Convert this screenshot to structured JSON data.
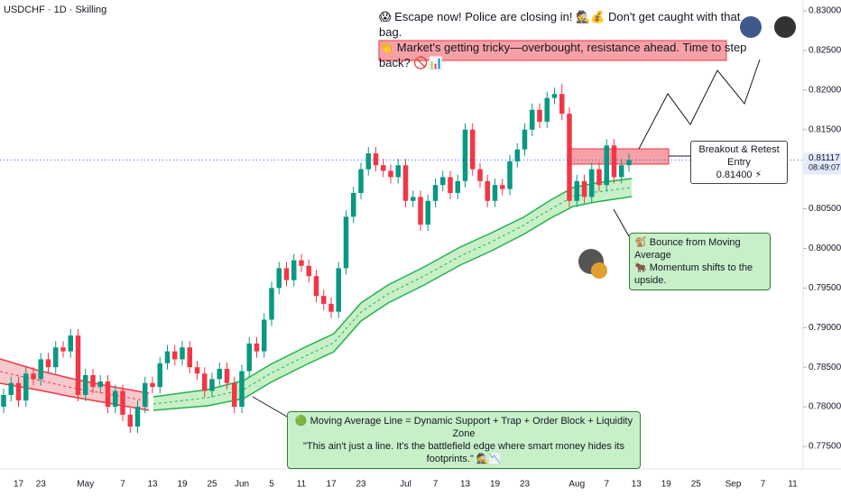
{
  "chart_data": {
    "type": "candlestick",
    "title": "USDCHF · 1D · Skilling",
    "categories": [
      null,
      null,
      "17",
      null,
      null,
      "23",
      null,
      null,
      null,
      null,
      null,
      "May",
      null,
      null,
      null,
      null,
      "7",
      null,
      null,
      null,
      "13",
      null,
      null,
      null,
      "19",
      null,
      null,
      null,
      "25",
      null,
      null,
      null,
      "Jun",
      null,
      null,
      null,
      "5",
      null,
      null,
      null,
      "11",
      null,
      null,
      null,
      "17",
      null,
      null,
      null,
      "23",
      null,
      null,
      null,
      null,
      null,
      "Jul",
      null,
      null,
      null,
      "7",
      null,
      null,
      null,
      "13",
      null,
      null,
      null,
      "19",
      null,
      null,
      null,
      "23",
      null,
      null,
      null,
      null,
      null,
      null,
      "Aug",
      null,
      null,
      null,
      "7",
      null,
      null,
      null,
      "13",
      null,
      null,
      null,
      "19",
      null,
      null,
      null,
      "25",
      null,
      null,
      null,
      null,
      "Sep",
      null,
      null,
      null,
      "7",
      null,
      null,
      null,
      "11",
      null,
      null,
      null
    ],
    "open": [
      0.78,
      0.7815,
      0.783,
      0.7808,
      0.7842,
      0.7835,
      0.786,
      0.785,
      0.7875,
      0.787,
      0.789,
      0.7815,
      0.784,
      0.7825,
      0.7832,
      0.78,
      0.782,
      0.779,
      0.7775,
      0.78,
      0.783,
      0.7825,
      0.7855,
      0.787,
      0.786,
      0.7875,
      0.785,
      0.7842,
      0.782,
      0.7835,
      0.7848,
      0.783,
      0.78,
      0.7845,
      0.788,
      0.787,
      0.791,
      0.795,
      0.7975,
      0.796,
      0.7985,
      0.7978,
      0.7965,
      0.794,
      0.793,
      0.792,
      0.7975,
      0.804,
      0.807,
      0.81,
      0.812,
      0.8105,
      0.8098,
      0.809,
      0.8105,
      0.806,
      0.8065,
      0.803,
      0.806,
      0.808,
      0.809,
      0.807,
      0.8085,
      0.815,
      0.81,
      0.8085,
      0.806,
      0.808,
      0.8075,
      0.811,
      0.8125,
      0.815,
      0.8175,
      0.816,
      0.819,
      0.8195,
      0.817,
      0.806,
      0.8085,
      0.8065,
      0.81,
      0.808,
      0.813,
      0.809,
      0.8105,
      null,
      null,
      null,
      null,
      null,
      null,
      null,
      null,
      null,
      null,
      null,
      null,
      null,
      null,
      null,
      null,
      null,
      null,
      null,
      null,
      null,
      null,
      null,
      null,
      null
    ],
    "high": [
      0.7823,
      0.7838,
      0.7838,
      0.785,
      0.785,
      0.7868,
      0.7868,
      0.7883,
      0.7883,
      0.7898,
      0.7898,
      0.7848,
      0.7848,
      0.784,
      0.784,
      0.7828,
      0.7828,
      0.7798,
      0.7808,
      0.7838,
      0.7838,
      0.7863,
      0.7878,
      0.7878,
      0.7883,
      0.7883,
      0.7858,
      0.785,
      0.7843,
      0.7856,
      0.7856,
      0.7838,
      0.7853,
      0.7888,
      0.7888,
      0.7918,
      0.7958,
      0.7983,
      0.7983,
      0.7993,
      0.7993,
      0.7986,
      0.7973,
      0.7948,
      0.7938,
      0.7983,
      0.8048,
      0.8078,
      0.8108,
      0.8128,
      0.8128,
      0.8113,
      0.8106,
      0.8113,
      0.8113,
      0.8073,
      0.8073,
      0.8068,
      0.8088,
      0.8098,
      0.8098,
      0.8093,
      0.8158,
      0.8158,
      0.8108,
      0.8093,
      0.8088,
      0.8088,
      0.8118,
      0.8133,
      0.8158,
      0.8183,
      0.8183,
      0.8198,
      0.8203,
      0.8208,
      0.8178,
      0.8093,
      0.8093,
      0.8108,
      0.8108,
      0.8138,
      0.8138,
      0.8113,
      0.812,
      null,
      null,
      null,
      null,
      null,
      null,
      null,
      null,
      null,
      null,
      null,
      null,
      null,
      null,
      null,
      null,
      null,
      null,
      null,
      null,
      null,
      null,
      null,
      null,
      null
    ],
    "low": [
      0.7792,
      0.7807,
      0.78,
      0.78,
      0.7827,
      0.7827,
      0.7842,
      0.7842,
      0.7862,
      0.7862,
      0.7807,
      0.7807,
      0.7817,
      0.7817,
      0.7792,
      0.7792,
      0.7782,
      0.7767,
      0.7767,
      0.7792,
      0.7817,
      0.7817,
      0.7847,
      0.7852,
      0.7852,
      0.7842,
      0.7834,
      0.7812,
      0.7812,
      0.7827,
      0.7822,
      0.7792,
      0.7792,
      0.7837,
      0.7862,
      0.7862,
      0.7902,
      0.7942,
      0.7952,
      0.7952,
      0.797,
      0.7957,
      0.7932,
      0.7922,
      0.7912,
      0.7912,
      0.7967,
      0.8032,
      0.8062,
      0.8092,
      0.8097,
      0.809,
      0.8082,
      0.8082,
      0.8052,
      0.8052,
      0.8022,
      0.8022,
      0.8052,
      0.8072,
      0.8062,
      0.8062,
      0.8077,
      0.8092,
      0.8077,
      0.8052,
      0.8052,
      0.8067,
      0.8067,
      0.8102,
      0.8117,
      0.8142,
      0.8152,
      0.8152,
      0.8182,
      0.8162,
      0.8052,
      0.8052,
      0.8057,
      0.8057,
      0.8072,
      0.8072,
      0.8082,
      0.8082,
      0.8097,
      null,
      null,
      null,
      null,
      null,
      null,
      null,
      null,
      null,
      null,
      null,
      null,
      null,
      null,
      null,
      null,
      null,
      null,
      null,
      null,
      null,
      null,
      null,
      null,
      null
    ],
    "close": [
      0.7815,
      0.783,
      0.7808,
      0.7842,
      0.7835,
      0.786,
      0.785,
      0.7875,
      0.787,
      0.789,
      0.7815,
      0.784,
      0.7825,
      0.7832,
      0.78,
      0.782,
      0.779,
      0.7775,
      0.78,
      0.783,
      0.7825,
      0.7855,
      0.787,
      0.786,
      0.7875,
      0.785,
      0.7842,
      0.782,
      0.7835,
      0.7848,
      0.783,
      0.78,
      0.7845,
      0.788,
      0.787,
      0.791,
      0.795,
      0.7975,
      0.796,
      0.7985,
      0.7978,
      0.7965,
      0.794,
      0.793,
      0.792,
      0.7975,
      0.804,
      0.807,
      0.81,
      0.812,
      0.8105,
      0.8098,
      0.809,
      0.8105,
      0.806,
      0.8065,
      0.803,
      0.806,
      0.808,
      0.809,
      0.807,
      0.8085,
      0.815,
      0.81,
      0.8085,
      0.806,
      0.808,
      0.8075,
      0.811,
      0.8125,
      0.815,
      0.8175,
      0.816,
      0.819,
      0.8195,
      0.817,
      0.806,
      0.8085,
      0.8065,
      0.81,
      0.808,
      0.813,
      0.809,
      0.8105,
      0.81117,
      null,
      null,
      null,
      null,
      null,
      null,
      null,
      null,
      null,
      null,
      null,
      null,
      null,
      null,
      null,
      null,
      null,
      null,
      null,
      null,
      null,
      null,
      null,
      null,
      null
    ],
    "up_color": "#089981",
    "down_color": "#f23645",
    "ylim": [
      0.775,
      0.83
    ],
    "yticks": [
      {
        "value": 0.775,
        "label": "0.77500"
      },
      {
        "value": 0.78,
        "label": "0.78000"
      },
      {
        "value": 0.785,
        "label": "0.78500"
      },
      {
        "value": 0.79,
        "label": "0.79000"
      },
      {
        "value": 0.795,
        "label": "0.79500"
      },
      {
        "value": 0.8,
        "label": "0.80000"
      },
      {
        "value": 0.805,
        "label": "0.80500"
      },
      {
        "value": 0.81,
        "label": "0.81000"
      },
      {
        "value": 0.815,
        "label": "0.81500"
      },
      {
        "value": 0.82,
        "label": "0.82000"
      },
      {
        "value": 0.825,
        "label": "0.82500"
      },
      {
        "value": 0.83,
        "label": "0.83000"
      }
    ],
    "countdown": "08:49:07",
    "annotations": {
      "top_line1": "😱 Escape now! Police are closing in! 🕵️💰 Don't get caught with that bag.",
      "top_line2": "👋 Market's getting tricky—overbought, resistance ahead. Time to step back? 🚫📊",
      "entry_title": "Breakout & Retest Entry",
      "entry_price": "0.81400 ⚡",
      "bounce_line1": "🐒 Bounce from Moving Average",
      "bounce_line2": "🐂 Momentum shifts to the upside.",
      "ma_line1": "🟢 Moving Average Line = Dynamic Support + Trap + Order Block + Liquidity Zone",
      "ma_line2": "\"This ain't just a line. It's the battlefield edge where smart money hides its footprints.\" 🕵️📉"
    }
  }
}
